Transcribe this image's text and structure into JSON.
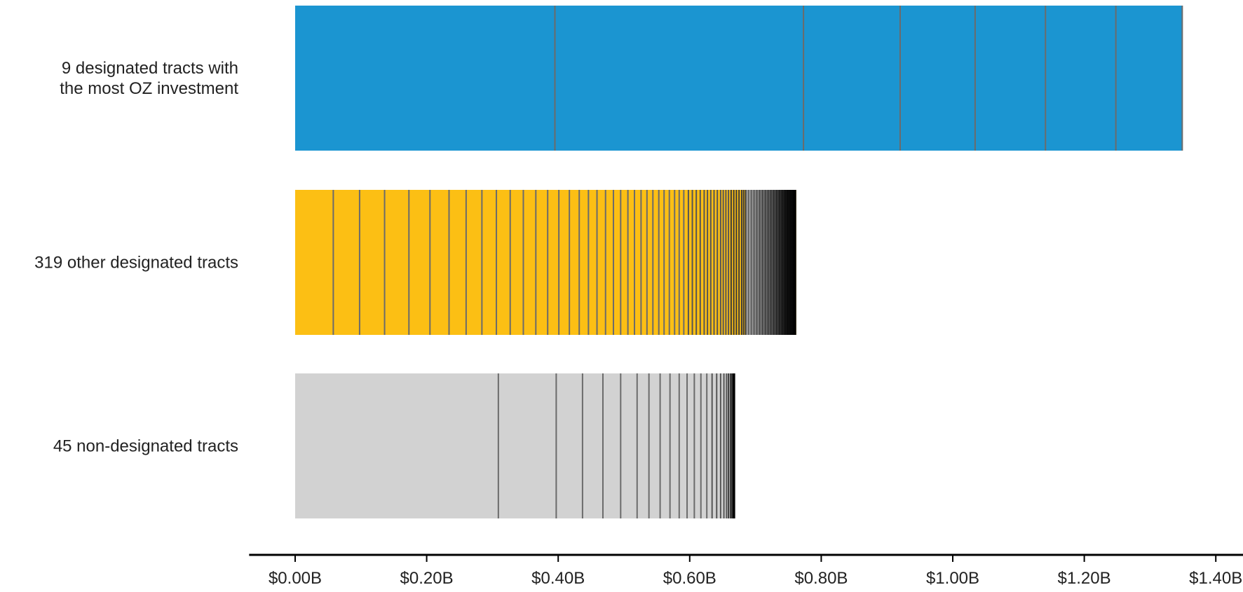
{
  "chart_data": {
    "type": "bar",
    "orientation": "horizontal",
    "stacked": true,
    "categories": [
      "9 designated tracts with the most OZ investment",
      "319 other designated tracts",
      "45 non-designated tracts"
    ],
    "category_label_lines": [
      [
        "9 designated tracts with",
        "the most OZ investment"
      ],
      [
        "319 other designated tracts"
      ],
      [
        "45 non-designated tracts"
      ]
    ],
    "series": [
      {
        "category": "9 designated tracts with the most OZ investment",
        "color": "#1b95d1",
        "total": 1.349,
        "segment_boundaries": [
          0.395,
          0.773,
          0.92,
          1.034,
          1.141,
          1.248,
          1.349
        ]
      },
      {
        "category": "319 other designated tracts",
        "color": "#fcbf14",
        "total": 0.762,
        "segment_boundaries": [
          0.058,
          0.098,
          0.136,
          0.173,
          0.205,
          0.234,
          0.26,
          0.284,
          0.306,
          0.327,
          0.347,
          0.366,
          0.384,
          0.401,
          0.417,
          0.432,
          0.446,
          0.459,
          0.472,
          0.484,
          0.495,
          0.506,
          0.516,
          0.526,
          0.535,
          0.544,
          0.553,
          0.561,
          0.569,
          0.577,
          0.584,
          0.591,
          0.598,
          0.604,
          0.61,
          0.616,
          0.622,
          0.627,
          0.632,
          0.637,
          0.642,
          0.647,
          0.651,
          0.655,
          0.659,
          0.663,
          0.667,
          0.671,
          0.675,
          0.679,
          0.682,
          0.685
        ],
        "tail_start": 0.685
      },
      {
        "category": "45 non-designated tracts",
        "color": "#d2d2d2",
        "total": 0.669,
        "segment_boundaries": [
          0.309,
          0.397,
          0.437,
          0.468,
          0.495,
          0.52,
          0.538,
          0.555,
          0.57,
          0.584,
          0.596,
          0.607,
          0.617,
          0.626,
          0.634,
          0.641,
          0.647,
          0.652,
          0.656,
          0.659,
          0.662,
          0.664
        ],
        "tail_start": 0.664
      }
    ],
    "x_ticks": [
      "$0.00B",
      "$0.20B",
      "$0.40B",
      "$0.60B",
      "$0.80B",
      "$1.00B",
      "$1.20B",
      "$1.40B"
    ],
    "x_tick_values": [
      0,
      0.2,
      0.4,
      0.6,
      0.8,
      1.0,
      1.2,
      1.4
    ],
    "xlim": [
      -0.07,
      1.45
    ],
    "grid": false
  }
}
